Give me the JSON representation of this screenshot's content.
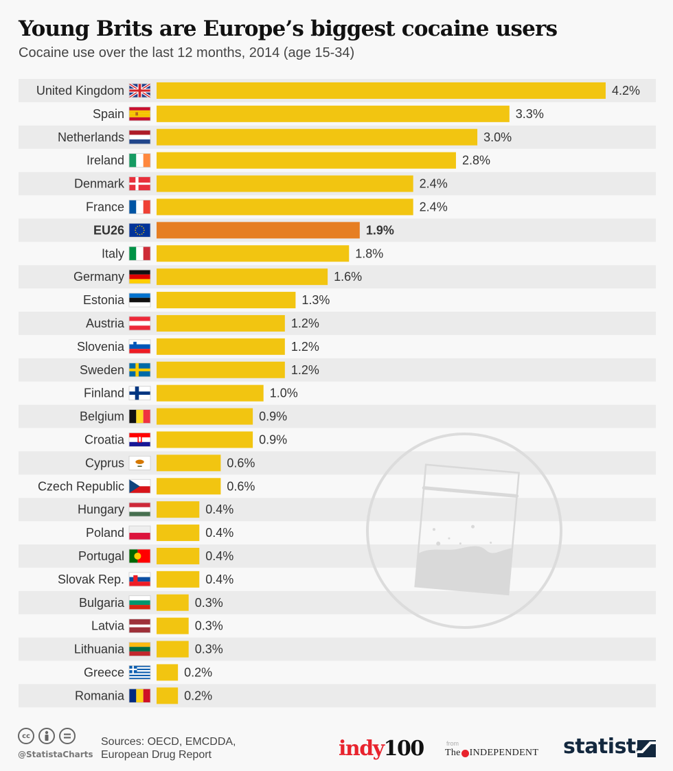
{
  "header": {
    "title": "Young Brits are Europe’s biggest cocaine users",
    "subtitle": "Cocaine use over the last 12 months, 2014 (age 15-34)"
  },
  "colors": {
    "bar": "#f2c511",
    "highlight_bar": "#e67e22",
    "stripe": "#ebebeb",
    "background": "#f8f8f8",
    "label_text": "#333333"
  },
  "chart_data": {
    "type": "bar",
    "orientation": "horizontal",
    "title": "Young Brits are Europe’s biggest cocaine users",
    "subtitle": "Cocaine use over the last 12 months, 2014 (age 15-34)",
    "xlabel": "",
    "ylabel": "",
    "unit": "%",
    "xlim": [
      0,
      4.2
    ],
    "grid": false,
    "highlight": "EU26",
    "categories": [
      "United Kingdom",
      "Spain",
      "Netherlands",
      "Ireland",
      "Denmark",
      "France",
      "EU26",
      "Italy",
      "Germany",
      "Estonia",
      "Austria",
      "Slovenia",
      "Sweden",
      "Finland",
      "Belgium",
      "Croatia",
      "Cyprus",
      "Czech Republic",
      "Hungary",
      "Poland",
      "Portugal",
      "Slovak Rep.",
      "Bulgaria",
      "Latvia",
      "Lithuania",
      "Greece",
      "Romania"
    ],
    "values": [
      4.2,
      3.3,
      3.0,
      2.8,
      2.4,
      2.4,
      1.9,
      1.8,
      1.6,
      1.3,
      1.2,
      1.2,
      1.2,
      1.0,
      0.9,
      0.9,
      0.6,
      0.6,
      0.4,
      0.4,
      0.4,
      0.4,
      0.3,
      0.3,
      0.3,
      0.2,
      0.2
    ],
    "value_labels": [
      "4.2%",
      "3.3%",
      "3.0%",
      "2.8%",
      "2.4%",
      "2.4%",
      "1.9%",
      "1.8%",
      "1.6%",
      "1.3%",
      "1.2%",
      "1.2%",
      "1.2%",
      "1.0%",
      "0.9%",
      "0.9%",
      "0.6%",
      "0.6%",
      "0.4%",
      "0.4%",
      "0.4%",
      "0.4%",
      "0.3%",
      "0.3%",
      "0.3%",
      "0.2%",
      "0.2%"
    ],
    "flags": [
      "uk-flag-icon",
      "spain-flag-icon",
      "netherlands-flag-icon",
      "ireland-flag-icon",
      "denmark-flag-icon",
      "france-flag-icon",
      "eu-flag-icon",
      "italy-flag-icon",
      "germany-flag-icon",
      "estonia-flag-icon",
      "austria-flag-icon",
      "slovenia-flag-icon",
      "sweden-flag-icon",
      "finland-flag-icon",
      "belgium-flag-icon",
      "croatia-flag-icon",
      "cyprus-flag-icon",
      "czech-flag-icon",
      "hungary-flag-icon",
      "poland-flag-icon",
      "portugal-flag-icon",
      "slovakia-flag-icon",
      "bulgaria-flag-icon",
      "latvia-flag-icon",
      "lithuania-flag-icon",
      "greece-flag-icon",
      "romania-flag-icon"
    ]
  },
  "footer": {
    "license_icons": [
      "cc-icon",
      "attribution-icon",
      "no-derivatives-icon"
    ],
    "cc_label": "cc",
    "handle": "@StatistaCharts",
    "sources_line1": "Sources: OECD, EMCDDA,",
    "sources_line2": "European Drug Report",
    "indy_part1": "indy",
    "indy_part2": "100",
    "from_label": "from",
    "independent_the": "The",
    "independent_name": "INDEPENDENT",
    "statista_label": "statista"
  }
}
